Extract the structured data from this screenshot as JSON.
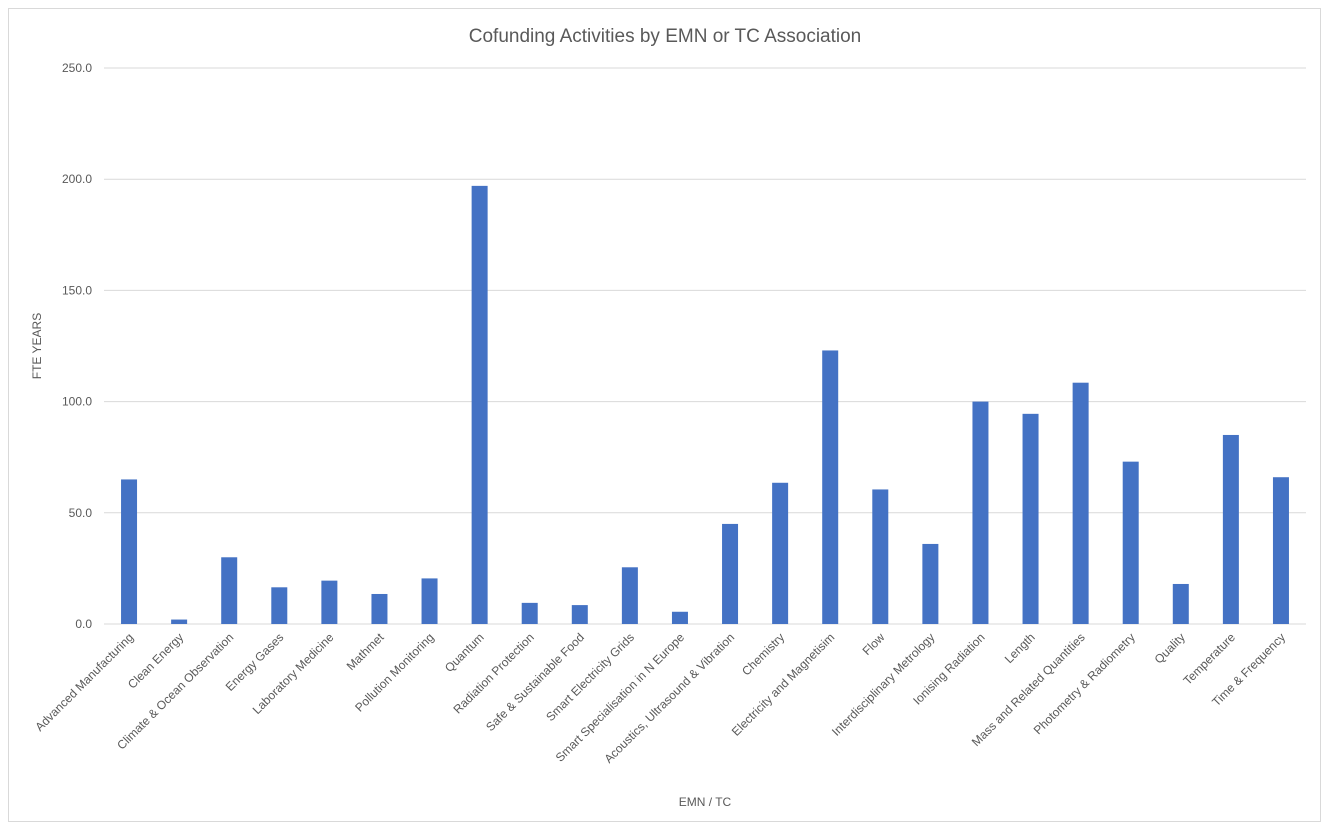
{
  "chart_data": {
    "type": "bar",
    "title": "Cofunding Activities by EMN or TC Association",
    "xlabel": "EMN / TC",
    "ylabel": "FTE YEARS",
    "ylim": [
      0,
      250
    ],
    "yticks": [
      "0.0",
      "50.0",
      "100.0",
      "150.0",
      "200.0",
      "250.0"
    ],
    "ytick_values": [
      0,
      50,
      100,
      150,
      200,
      250
    ],
    "grid": true,
    "bar_color": "#4472C4",
    "categories": [
      "Advanced Manufacturing",
      "Clean Energy",
      "Climate & Ocean Observation",
      "Energy Gases",
      "Laboratory Medicine",
      "Mathmet",
      "Pollution Monitoring",
      "Quantum",
      "Radiation Protection",
      "Safe & Sustainable Food",
      "Smart Electricity Grids",
      "Smart Specialisation in N Europe",
      "Acoustics, Ultrasound & Vibration",
      "Chemistry",
      "Electricity and Magnetisim",
      "Flow",
      "Interdisciplinary Metrology",
      "Ionising Radiation",
      "Length",
      "Mass and Related Quantities",
      "Photometry & Radiometry",
      "Quality",
      "Temperature",
      "Time & Frequency"
    ],
    "values": [
      65,
      2,
      30,
      16.5,
      19.5,
      13.5,
      20.5,
      197,
      9.5,
      8.5,
      25.5,
      5.5,
      45,
      63.5,
      123,
      60.5,
      36,
      100,
      94.5,
      108.5,
      73,
      18,
      85,
      66
    ]
  }
}
